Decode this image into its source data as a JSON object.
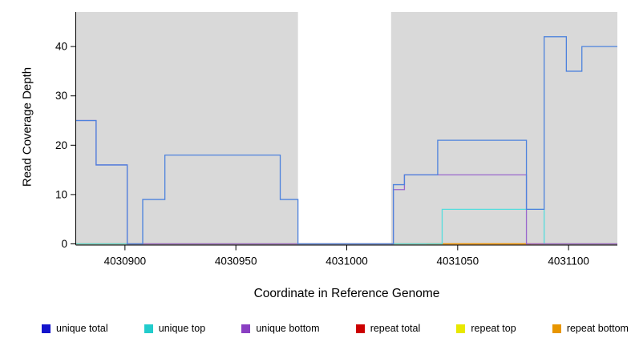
{
  "chart_data": {
    "type": "line",
    "title": "",
    "xlabel": "Coordinate in Reference Genome",
    "ylabel": "Read Coverage Depth",
    "x_range": [
      4030878,
      4031122
    ],
    "y_range": [
      0,
      47
    ],
    "x_ticks": [
      4030900,
      4030950,
      4031000,
      4031050,
      4031100
    ],
    "y_ticks": [
      0,
      10,
      20,
      30,
      40
    ],
    "grid": false,
    "plot_bg": "#d9d9d9",
    "shaded_regions": [
      [
        4030878,
        4030978
      ],
      [
        4031020,
        4031122
      ]
    ],
    "step_mode": "after",
    "legend_position": "bottom",
    "series": [
      {
        "name": "repeat top",
        "color": "#e8e800",
        "points": [
          [
            4030878,
            0
          ],
          [
            4031122,
            0
          ]
        ]
      },
      {
        "name": "repeat total",
        "color": "#d40000",
        "points": [
          [
            4030878,
            0
          ],
          [
            4031122,
            0
          ]
        ]
      },
      {
        "name": "repeat bottom",
        "color": "#ee9900",
        "points": [
          [
            4031036,
            0
          ],
          [
            4031083,
            0
          ]
        ]
      },
      {
        "name": "unique top",
        "color": "#55dddd",
        "points": [
          [
            4030878,
            0
          ],
          [
            4031043,
            7
          ],
          [
            4031089,
            0
          ],
          [
            4031122,
            0
          ]
        ]
      },
      {
        "name": "unique bottom",
        "color": "#9966cc",
        "points": [
          [
            4030878,
            25
          ],
          [
            4030887,
            16
          ],
          [
            4030901,
            0
          ],
          [
            4031021,
            11
          ],
          [
            4031026,
            14
          ],
          [
            4031081,
            0
          ],
          [
            4031122,
            0
          ]
        ]
      },
      {
        "name": "unique total",
        "color": "#4d82dd",
        "points": [
          [
            4030878,
            25
          ],
          [
            4030887,
            16
          ],
          [
            4030901,
            0
          ],
          [
            4030908,
            9
          ],
          [
            4030918,
            18
          ],
          [
            4030970,
            9
          ],
          [
            4030978,
            0
          ],
          [
            4031021,
            12
          ],
          [
            4031026,
            14
          ],
          [
            4031041,
            21
          ],
          [
            4031081,
            7
          ],
          [
            4031089,
            42
          ],
          [
            4031099,
            35
          ],
          [
            4031106,
            40
          ],
          [
            4031122,
            40
          ]
        ]
      }
    ],
    "legend": [
      {
        "label": "unique total",
        "color": "#1414cc"
      },
      {
        "label": "unique top",
        "color": "#22cccc"
      },
      {
        "label": "unique bottom",
        "color": "#8a3fc2"
      },
      {
        "label": "repeat total",
        "color": "#cc0000"
      },
      {
        "label": "repeat top",
        "color": "#e8e800"
      },
      {
        "label": "repeat bottom",
        "color": "#e89600"
      }
    ]
  }
}
